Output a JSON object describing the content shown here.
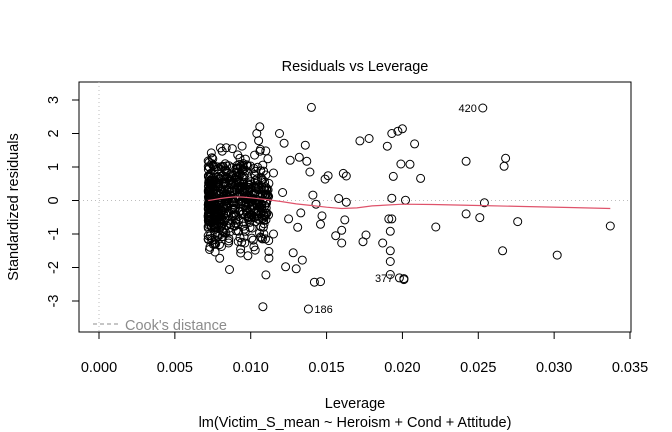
{
  "chart_data": {
    "type": "scatter",
    "title": "Residuals vs Leverage",
    "xlabel": "Leverage",
    "subtitle": "lm(Victim_S_mean ~ Heroism + Cond + Attitude)",
    "ylabel": "Standardized residuals",
    "xlim": [
      -0.0007,
      0.0345
    ],
    "ylim": [
      -3.95,
      3.3
    ],
    "x_ticks": [
      0.0,
      0.005,
      0.01,
      0.015,
      0.02,
      0.025,
      0.03,
      0.035
    ],
    "x_tick_labels": [
      "0.000",
      "0.005",
      "0.010",
      "0.015",
      "0.020",
      "0.025",
      "0.030",
      "0.035"
    ],
    "y_ticks": [
      -3,
      -2,
      -1,
      0,
      1,
      2,
      3
    ],
    "y_tick_labels": [
      "-3",
      "-2",
      "-1",
      "0",
      "1",
      "2",
      "3"
    ],
    "grid": false,
    "reference_lines": {
      "h": 0,
      "v": 0,
      "style": "dotted",
      "color": "#bebebe"
    },
    "legend": {
      "position": "bottom-left",
      "label": "Cook's distance",
      "style": "dashed",
      "color": "#8c8c8c"
    },
    "smoother": {
      "color": "#df536b",
      "x": [
        0.0072,
        0.0075,
        0.008,
        0.0085,
        0.009,
        0.0095,
        0.01,
        0.011,
        0.012,
        0.013,
        0.014,
        0.015,
        0.016,
        0.017,
        0.018,
        0.02,
        0.022,
        0.025,
        0.028,
        0.031,
        0.0337
      ],
      "y": [
        0.0,
        0.02,
        0.06,
        0.09,
        0.11,
        0.1,
        0.08,
        0.03,
        -0.03,
        -0.1,
        -0.15,
        -0.2,
        -0.24,
        -0.22,
        -0.16,
        -0.11,
        -0.12,
        -0.15,
        -0.18,
        -0.21,
        -0.24
      ]
    },
    "labeled_points": [
      {
        "label": "420",
        "x": 0.0253,
        "y": 2.76,
        "label_side": "left"
      },
      {
        "label": "186",
        "x": 0.0138,
        "y": -3.24,
        "label_side": "right"
      },
      {
        "label": "377",
        "x": 0.0198,
        "y": -2.31,
        "label_side": "left"
      }
    ],
    "points": [
      [
        0.0253,
        2.76
      ],
      [
        0.0138,
        -3.24
      ],
      [
        0.0198,
        -2.31
      ],
      [
        0.0337,
        -0.76
      ],
      [
        0.0302,
        -1.63
      ],
      [
        0.0276,
        -0.63
      ],
      [
        0.0266,
        -1.5
      ],
      [
        0.0268,
        1.26
      ],
      [
        0.0267,
        1.02
      ],
      [
        0.0254,
        -0.07
      ],
      [
        0.0251,
        -0.51
      ],
      [
        0.0242,
        -0.4
      ],
      [
        0.0242,
        1.17
      ],
      [
        0.0212,
        0.66
      ],
      [
        0.0208,
        1.69
      ],
      [
        0.0205,
        1.08
      ],
      [
        0.0202,
        0.01
      ],
      [
        0.02,
        2.14
      ],
      [
        0.0199,
        1.09
      ],
      [
        0.0197,
        2.07
      ],
      [
        0.0194,
        0.72
      ],
      [
        0.0193,
        0.07
      ],
      [
        0.0193,
        -0.55
      ],
      [
        0.0192,
        -0.92
      ],
      [
        0.0192,
        -1.5
      ],
      [
        0.0192,
        -1.82
      ],
      [
        0.0191,
        -0.55
      ],
      [
        0.0192,
        -2.21
      ],
      [
        0.0201,
        -2.36
      ],
      [
        0.0187,
        -1.27
      ],
      [
        0.0201,
        -2.33
      ],
      [
        0.019,
        1.62
      ],
      [
        0.0178,
        1.85
      ],
      [
        0.0172,
        1.78
      ],
      [
        0.0193,
        2.0
      ],
      [
        0.0222,
        -0.79
      ],
      [
        0.0176,
        -1.03
      ],
      [
        0.0174,
        -1.23
      ],
      [
        0.016,
        -1.27
      ],
      [
        0.016,
        -0.89
      ],
      [
        0.0162,
        -0.58
      ],
      [
        0.0163,
        -0.05
      ],
      [
        0.0158,
        0.06
      ],
      [
        0.0163,
        0.73
      ],
      [
        0.0161,
        0.81
      ],
      [
        0.0156,
        -1.05
      ],
      [
        0.0149,
        0.64
      ],
      [
        0.0151,
        0.74
      ],
      [
        0.0147,
        -0.46
      ],
      [
        0.0146,
        -0.71
      ],
      [
        0.0146,
        -2.42
      ],
      [
        0.0142,
        -2.44
      ],
      [
        0.014,
        2.78
      ],
      [
        0.0141,
        0.16
      ],
      [
        0.0143,
        -0.11
      ],
      [
        0.0139,
        0.85
      ],
      [
        0.0137,
        1.17
      ],
      [
        0.0136,
        1.65
      ],
      [
        0.0132,
        1.29
      ],
      [
        0.0133,
        -0.37
      ],
      [
        0.0131,
        -0.8
      ],
      [
        0.0134,
        -1.78
      ],
      [
        0.0128,
        -1.56
      ],
      [
        0.013,
        -2.04
      ],
      [
        0.0126,
        1.2
      ],
      [
        0.0122,
        1.71
      ],
      [
        0.0123,
        -1.98
      ],
      [
        0.0119,
        2.0
      ],
      [
        0.0115,
        -1.0
      ],
      [
        0.0112,
        -1.72
      ],
      [
        0.011,
        -2.22
      ],
      [
        0.0108,
        -3.17
      ],
      [
        0.0106,
        2.2
      ],
      [
        0.0104,
        2.0
      ],
      [
        0.0115,
        0.82
      ],
      [
        0.0121,
        0.24
      ],
      [
        0.0125,
        -0.55
      ]
    ],
    "cluster": {
      "description": "dense cluster of ~600 observations at leverage 0.0072–0.0110 spanning residuals -2.9 to 2.9",
      "x_range": [
        0.0072,
        0.0112
      ],
      "y_range": [
        -2.9,
        2.9
      ],
      "n": 600
    }
  }
}
